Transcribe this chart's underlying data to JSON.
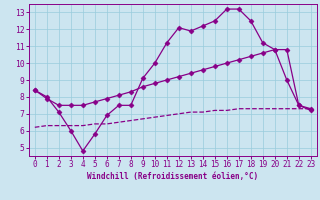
{
  "title": "",
  "xlabel": "Windchill (Refroidissement éolien,°C)",
  "background_color": "#cce5f0",
  "grid_color": "#99ccdd",
  "line_color": "#880088",
  "xlim": [
    -0.5,
    23.5
  ],
  "ylim": [
    4.5,
    13.5
  ],
  "yticks": [
    5,
    6,
    7,
    8,
    9,
    10,
    11,
    12,
    13
  ],
  "xticks": [
    0,
    1,
    2,
    3,
    4,
    5,
    6,
    7,
    8,
    9,
    10,
    11,
    12,
    13,
    14,
    15,
    16,
    17,
    18,
    19,
    20,
    21,
    22,
    23
  ],
  "line1_x": [
    0,
    1,
    2,
    3,
    4,
    5,
    6,
    7,
    8,
    9,
    10,
    11,
    12,
    13,
    14,
    15,
    16,
    17,
    18,
    19,
    20,
    21,
    22,
    23
  ],
  "line1_y": [
    8.4,
    8.0,
    7.1,
    6.0,
    4.8,
    5.8,
    6.9,
    7.5,
    7.5,
    9.1,
    10.0,
    11.2,
    12.1,
    11.9,
    12.2,
    12.5,
    13.2,
    13.2,
    12.5,
    11.2,
    10.8,
    9.0,
    7.5,
    7.2
  ],
  "line2_x": [
    0,
    1,
    2,
    3,
    4,
    5,
    6,
    7,
    8,
    9,
    10,
    11,
    12,
    13,
    14,
    15,
    16,
    17,
    18,
    19,
    20,
    21,
    22,
    23
  ],
  "line2_y": [
    8.4,
    7.9,
    7.5,
    7.5,
    7.5,
    7.7,
    7.9,
    8.1,
    8.3,
    8.6,
    8.8,
    9.0,
    9.2,
    9.4,
    9.6,
    9.8,
    10.0,
    10.2,
    10.4,
    10.6,
    10.8,
    10.8,
    7.5,
    7.3
  ],
  "line3_x": [
    0,
    1,
    2,
    3,
    4,
    5,
    6,
    7,
    8,
    9,
    10,
    11,
    12,
    13,
    14,
    15,
    16,
    17,
    18,
    19,
    20,
    21,
    22,
    23
  ],
  "line3_y": [
    6.2,
    6.3,
    6.3,
    6.3,
    6.3,
    6.4,
    6.4,
    6.5,
    6.6,
    6.7,
    6.8,
    6.9,
    7.0,
    7.1,
    7.1,
    7.2,
    7.2,
    7.3,
    7.3,
    7.3,
    7.3,
    7.3,
    7.3,
    7.3
  ],
  "xlabel_fontsize": 5.5,
  "tick_fontsize": 5.5,
  "marker_size": 2.5,
  "line_width": 0.9
}
